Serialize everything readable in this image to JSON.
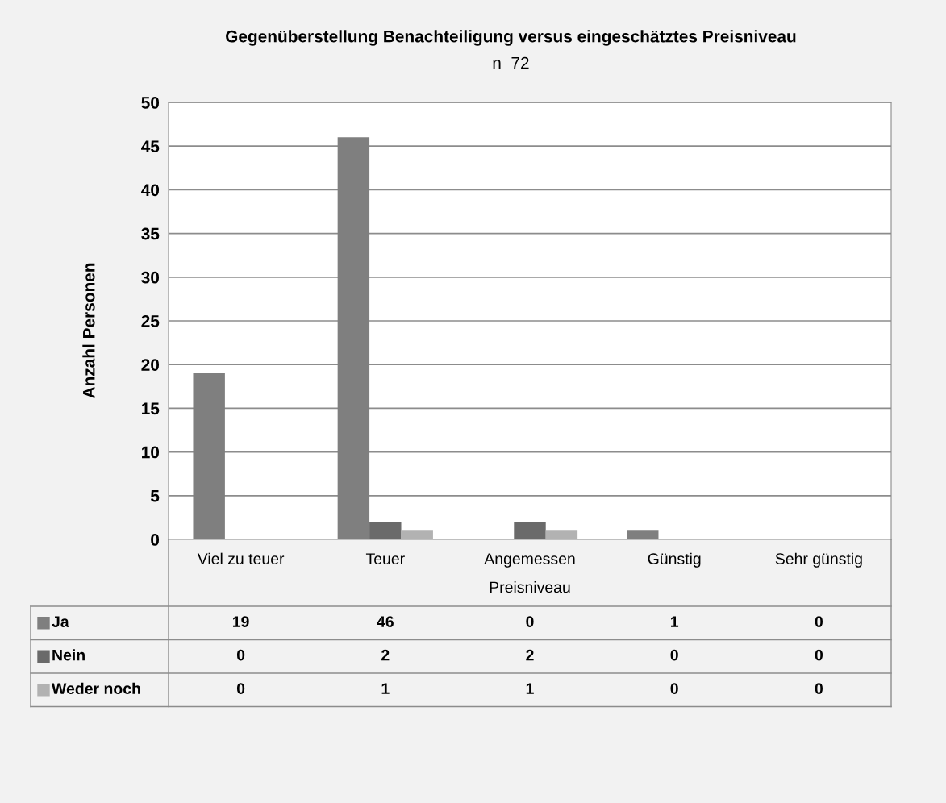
{
  "chart_data": {
    "type": "bar",
    "title": "Gegenüberstellung Benachteiligung versus eingeschätztes Preisniveau",
    "subtitle": "n  72",
    "xlabel": "Preisniveau",
    "ylabel": "Anzahl Personen",
    "categories": [
      "Viel zu teuer",
      "Teuer",
      "Angemessen",
      "Günstig",
      "Sehr günstig"
    ],
    "series": [
      {
        "name": "Ja",
        "color": "#7f7f7f",
        "values": [
          19,
          46,
          0,
          1,
          0
        ]
      },
      {
        "name": "Nein",
        "color": "#6a6a6a",
        "values": [
          0,
          2,
          2,
          0,
          0
        ]
      },
      {
        "name": "Weder noch",
        "color": "#b2b2b2",
        "values": [
          0,
          1,
          1,
          0,
          0
        ]
      }
    ],
    "ylim": [
      0,
      50
    ],
    "yticks": [
      0,
      5,
      10,
      15,
      20,
      25,
      30,
      35,
      40,
      45,
      50
    ],
    "grid": "y",
    "data_labels": true,
    "legend": "bottom"
  }
}
